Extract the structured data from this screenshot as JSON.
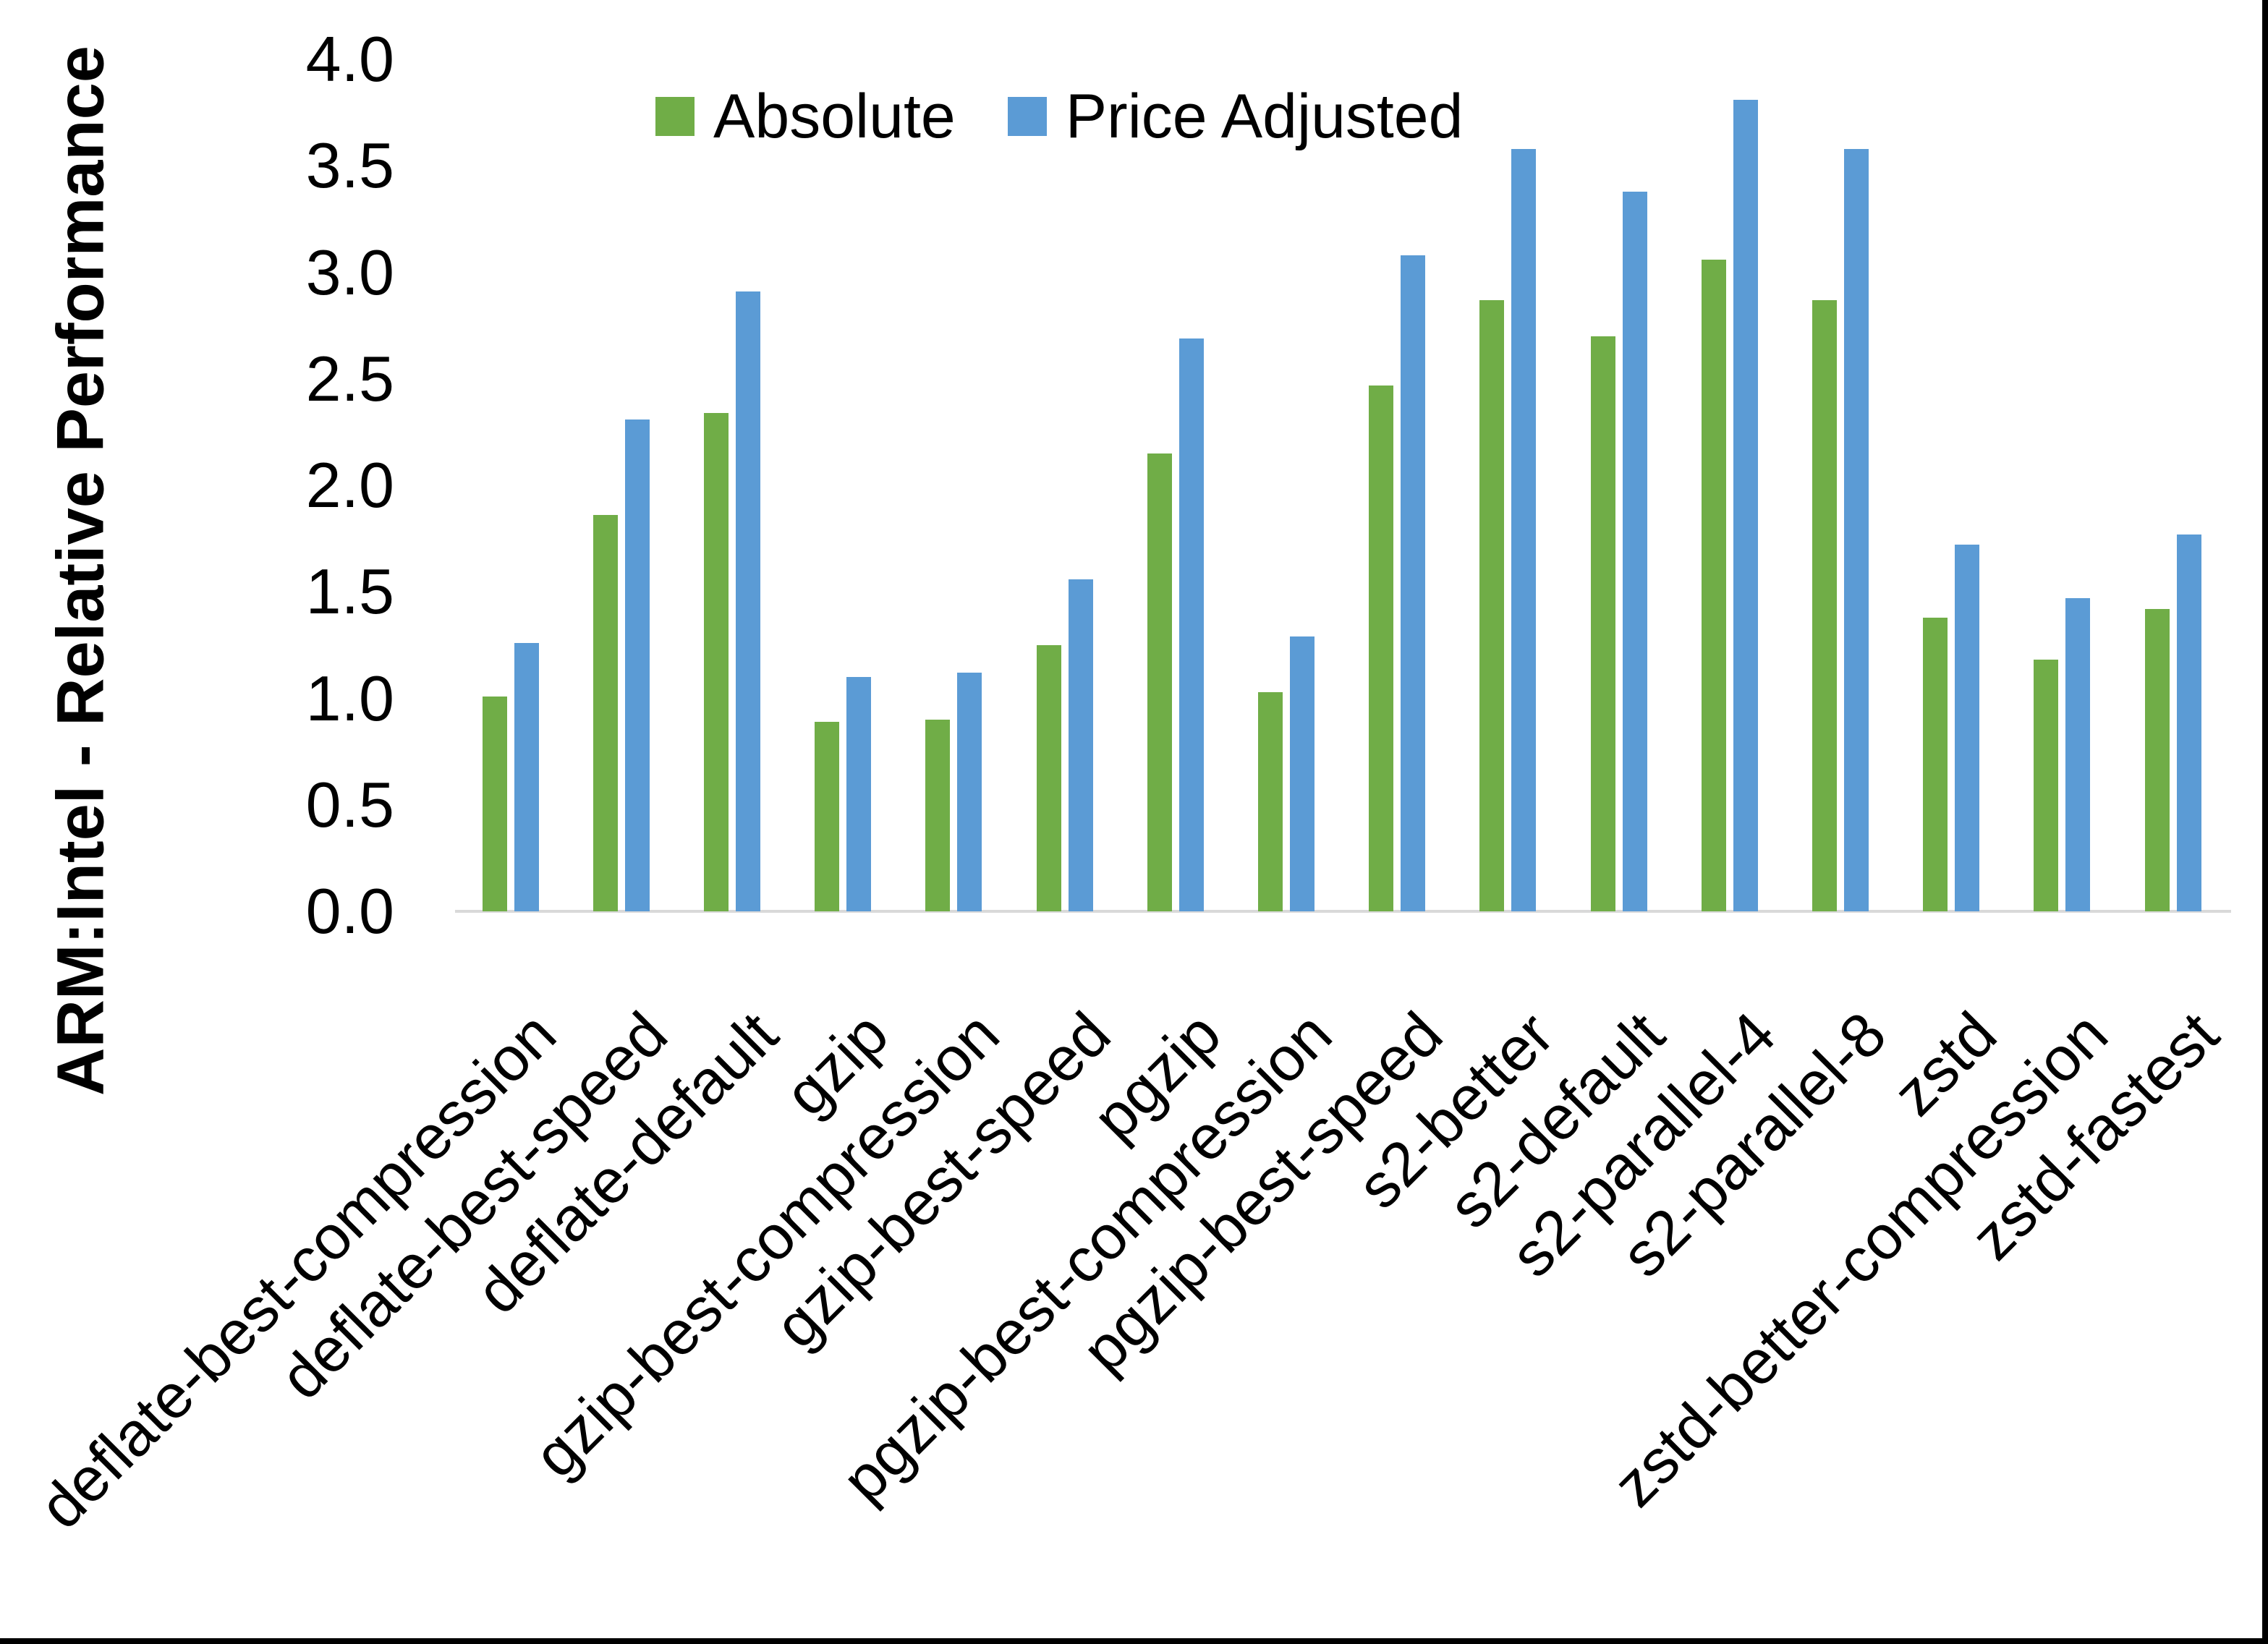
{
  "chart_data": {
    "type": "bar",
    "title": "",
    "xlabel": "",
    "ylabel": "ARM:Intel - Relative Performance",
    "ylim": [
      0.0,
      4.0
    ],
    "ytick_step": 0.5,
    "ytick_labels": [
      "0.0",
      "0.5",
      "1.0",
      "1.5",
      "2.0",
      "2.5",
      "3.0",
      "3.5",
      "4.0"
    ],
    "grid": false,
    "legend_position": "top-center",
    "categories": [
      "deflate-best-compression",
      "deflate-best-speed",
      "deflate-default",
      "gzip",
      "gzip-best-compression",
      "gzip-best-speed",
      "pgzip",
      "pgzip-best-compression",
      "pgzip-best-speed",
      "s2-better",
      "s2-default",
      "s2-parallel-4",
      "s2-parallel-8",
      "zstd",
      "zstd-better-compression",
      "zstd-fastest"
    ],
    "series": [
      {
        "name": "Absolute",
        "color": "#70AD47",
        "values": [
          1.01,
          1.86,
          2.34,
          0.89,
          0.9,
          1.25,
          2.15,
          1.03,
          2.47,
          2.87,
          2.7,
          3.06,
          2.87,
          1.38,
          1.18,
          1.42
        ]
      },
      {
        "name": "Price Adjusted",
        "color": "#5B9BD5",
        "values": [
          1.26,
          2.31,
          2.91,
          1.1,
          1.12,
          1.56,
          2.69,
          1.29,
          3.08,
          3.58,
          3.38,
          3.81,
          3.58,
          1.72,
          1.47,
          1.77
        ]
      }
    ],
    "axis_line_color": "#d9d9d9",
    "text_color": "#000000"
  }
}
